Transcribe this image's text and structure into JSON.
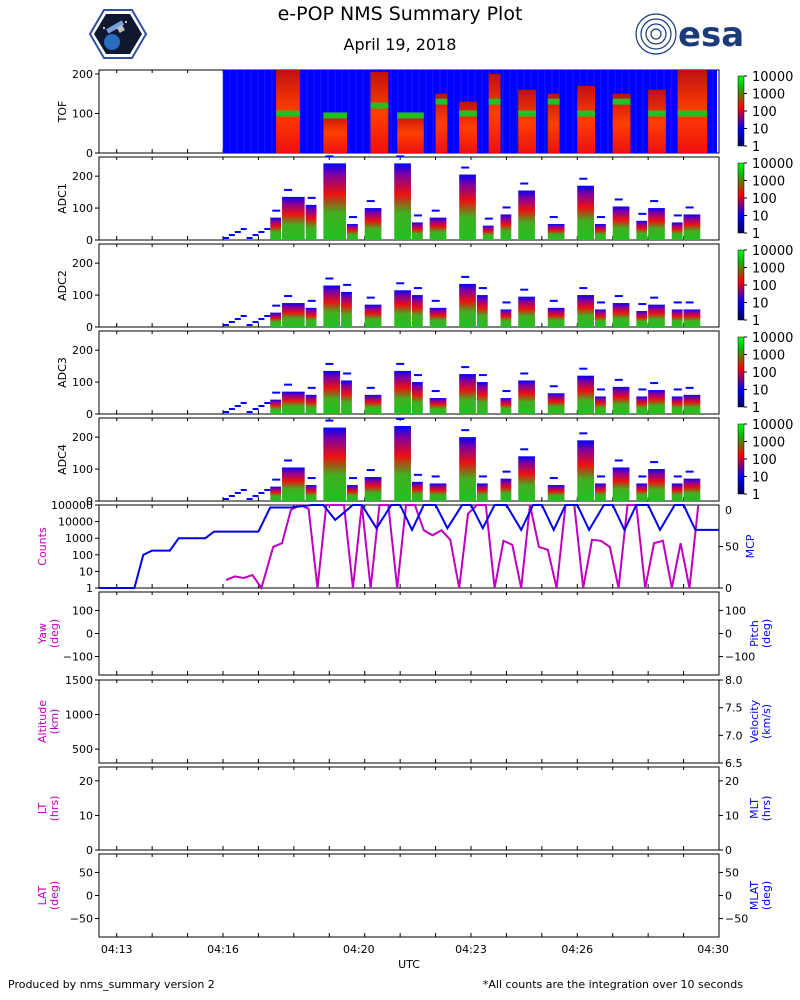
{
  "header": {
    "title": "e-POP NMS Summary Plot",
    "date": "April 19, 2018",
    "right_logo_text": "esa"
  },
  "footer": {
    "left": "Produced by nms_summary version 2",
    "right": "*All counts are the integration over 10 seconds"
  },
  "colors": {
    "magenta": "#c000c0",
    "blue": "#0000ee",
    "spectro_low": "#0000ff",
    "spectro_mid": "#ee1010",
    "spectro_high": "#22c022"
  },
  "chart_data": [
    {
      "type": "heatmap",
      "ylabel": "TOF",
      "ylim": [
        0,
        210
      ],
      "yticks": [
        "0",
        "100",
        "200"
      ],
      "colorbar_ticks": [
        "10000",
        "1000",
        "100",
        "10",
        "1"
      ],
      "colorbar_scale": "log",
      "xlim": [
        "04:12:30",
        "04:30:00"
      ],
      "data_start": "04:16:00",
      "bursts": [
        {
          "start": "04:17:30",
          "end": "04:18:10",
          "top": 210,
          "band": 100
        },
        {
          "start": "04:18:50",
          "end": "04:19:30",
          "top": 100,
          "band": 95
        },
        {
          "start": "04:20:10",
          "end": "04:20:40",
          "top": 205,
          "band": 120
        },
        {
          "start": "04:20:55",
          "end": "04:21:40",
          "top": 100,
          "band": 95
        },
        {
          "start": "04:22:00",
          "end": "04:22:20",
          "top": 150,
          "band": 130
        },
        {
          "start": "04:22:40",
          "end": "04:23:10",
          "top": 130,
          "band": 100
        },
        {
          "start": "04:23:30",
          "end": "04:23:50",
          "top": 200,
          "band": 130
        },
        {
          "start": "04:24:20",
          "end": "04:24:50",
          "top": 160,
          "band": 100
        },
        {
          "start": "04:25:10",
          "end": "04:25:30",
          "top": 150,
          "band": 130
        },
        {
          "start": "04:26:00",
          "end": "04:26:30",
          "top": 170,
          "band": 100
        },
        {
          "start": "04:27:00",
          "end": "04:27:30",
          "top": 150,
          "band": 130
        },
        {
          "start": "04:28:00",
          "end": "04:28:30",
          "top": 160,
          "band": 100
        },
        {
          "start": "04:28:50",
          "end": "04:29:40",
          "top": 210,
          "band": 100
        }
      ]
    },
    {
      "type": "heatmap",
      "ylabel": "ADC1",
      "ylim": [
        0,
        260
      ],
      "yticks": [
        "0",
        "100",
        "200"
      ],
      "colorbar_ticks": [
        "10000",
        "1000",
        "100",
        "10",
        "1"
      ],
      "colorbar_scale": "log",
      "xlim": [
        "04:12:30",
        "04:30:00"
      ],
      "columns": [
        {
          "start": "04:17:20",
          "end": "04:17:40",
          "top": 70
        },
        {
          "start": "04:17:40",
          "end": "04:18:20",
          "top": 135
        },
        {
          "start": "04:18:20",
          "end": "04:18:40",
          "top": 110
        },
        {
          "start": "04:18:50",
          "end": "04:19:30",
          "top": 240
        },
        {
          "start": "04:19:30",
          "end": "04:19:50",
          "top": 50
        },
        {
          "start": "04:20:00",
          "end": "04:20:30",
          "top": 100
        },
        {
          "start": "04:20:50",
          "end": "04:21:20",
          "top": 240
        },
        {
          "start": "04:21:20",
          "end": "04:21:40",
          "top": 55
        },
        {
          "start": "04:21:50",
          "end": "04:22:20",
          "top": 70
        },
        {
          "start": "04:22:40",
          "end": "04:23:10",
          "top": 205
        },
        {
          "start": "04:23:20",
          "end": "04:23:40",
          "top": 45
        },
        {
          "start": "04:23:50",
          "end": "04:24:10",
          "top": 80
        },
        {
          "start": "04:24:20",
          "end": "04:24:50",
          "top": 155
        },
        {
          "start": "04:25:10",
          "end": "04:25:40",
          "top": 50
        },
        {
          "start": "04:26:00",
          "end": "04:26:30",
          "top": 170
        },
        {
          "start": "04:26:30",
          "end": "04:26:50",
          "top": 50
        },
        {
          "start": "04:27:00",
          "end": "04:27:30",
          "top": 105
        },
        {
          "start": "04:27:40",
          "end": "04:28:00",
          "top": 60
        },
        {
          "start": "04:28:00",
          "end": "04:28:30",
          "top": 100
        },
        {
          "start": "04:28:40",
          "end": "04:29:00",
          "top": 55
        },
        {
          "start": "04:29:00",
          "end": "04:29:30",
          "top": 80
        }
      ]
    },
    {
      "type": "heatmap",
      "ylabel": "ADC2",
      "ylim": [
        0,
        260
      ],
      "yticks": [
        "0",
        "100",
        "200"
      ],
      "colorbar_ticks": [
        "10000",
        "1000",
        "100",
        "10",
        "1"
      ],
      "colorbar_scale": "log",
      "xlim": [
        "04:12:30",
        "04:30:00"
      ],
      "columns": [
        {
          "start": "04:17:20",
          "end": "04:17:40",
          "top": 45
        },
        {
          "start": "04:17:40",
          "end": "04:18:20",
          "top": 75
        },
        {
          "start": "04:18:20",
          "end": "04:18:40",
          "top": 60
        },
        {
          "start": "04:18:50",
          "end": "04:19:20",
          "top": 130
        },
        {
          "start": "04:19:20",
          "end": "04:19:40",
          "top": 110
        },
        {
          "start": "04:20:00",
          "end": "04:20:30",
          "top": 70
        },
        {
          "start": "04:20:50",
          "end": "04:21:20",
          "top": 115
        },
        {
          "start": "04:21:20",
          "end": "04:21:40",
          "top": 100
        },
        {
          "start": "04:21:50",
          "end": "04:22:20",
          "top": 60
        },
        {
          "start": "04:22:40",
          "end": "04:23:10",
          "top": 135
        },
        {
          "start": "04:23:10",
          "end": "04:23:30",
          "top": 100
        },
        {
          "start": "04:23:50",
          "end": "04:24:10",
          "top": 55
        },
        {
          "start": "04:24:20",
          "end": "04:24:50",
          "top": 95
        },
        {
          "start": "04:25:10",
          "end": "04:25:40",
          "top": 60
        },
        {
          "start": "04:26:00",
          "end": "04:26:30",
          "top": 100
        },
        {
          "start": "04:26:30",
          "end": "04:26:50",
          "top": 55
        },
        {
          "start": "04:27:00",
          "end": "04:27:30",
          "top": 75
        },
        {
          "start": "04:27:40",
          "end": "04:28:00",
          "top": 50
        },
        {
          "start": "04:28:00",
          "end": "04:28:30",
          "top": 70
        },
        {
          "start": "04:28:40",
          "end": "04:29:00",
          "top": 55
        },
        {
          "start": "04:29:00",
          "end": "04:29:30",
          "top": 55
        }
      ]
    },
    {
      "type": "heatmap",
      "ylabel": "ADC3",
      "ylim": [
        0,
        260
      ],
      "yticks": [
        "0",
        "100",
        "200"
      ],
      "colorbar_ticks": [
        "10000",
        "1000",
        "100",
        "10",
        "1"
      ],
      "colorbar_scale": "log",
      "xlim": [
        "04:12:30",
        "04:30:00"
      ],
      "columns": [
        {
          "start": "04:17:20",
          "end": "04:17:40",
          "top": 45
        },
        {
          "start": "04:17:40",
          "end": "04:18:20",
          "top": 70
        },
        {
          "start": "04:18:20",
          "end": "04:18:40",
          "top": 60
        },
        {
          "start": "04:18:50",
          "end": "04:19:20",
          "top": 135
        },
        {
          "start": "04:19:20",
          "end": "04:19:40",
          "top": 105
        },
        {
          "start": "04:20:00",
          "end": "04:20:30",
          "top": 60
        },
        {
          "start": "04:20:50",
          "end": "04:21:20",
          "top": 135
        },
        {
          "start": "04:21:20",
          "end": "04:21:40",
          "top": 100
        },
        {
          "start": "04:21:50",
          "end": "04:22:20",
          "top": 50
        },
        {
          "start": "04:22:40",
          "end": "04:23:10",
          "top": 125
        },
        {
          "start": "04:23:10",
          "end": "04:23:30",
          "top": 100
        },
        {
          "start": "04:23:50",
          "end": "04:24:10",
          "top": 50
        },
        {
          "start": "04:24:20",
          "end": "04:24:50",
          "top": 105
        },
        {
          "start": "04:25:10",
          "end": "04:25:40",
          "top": 65
        },
        {
          "start": "04:26:00",
          "end": "04:26:30",
          "top": 120
        },
        {
          "start": "04:26:30",
          "end": "04:26:50",
          "top": 55
        },
        {
          "start": "04:27:00",
          "end": "04:27:30",
          "top": 85
        },
        {
          "start": "04:27:40",
          "end": "04:28:00",
          "top": 55
        },
        {
          "start": "04:28:00",
          "end": "04:28:30",
          "top": 75
        },
        {
          "start": "04:28:40",
          "end": "04:29:00",
          "top": 55
        },
        {
          "start": "04:29:00",
          "end": "04:29:30",
          "top": 60
        }
      ]
    },
    {
      "type": "heatmap",
      "ylabel": "ADC4",
      "ylim": [
        0,
        260
      ],
      "yticks": [
        "0",
        "100",
        "200"
      ],
      "colorbar_ticks": [
        "10000",
        "1000",
        "100",
        "10",
        "1"
      ],
      "colorbar_scale": "log",
      "xlim": [
        "04:12:30",
        "04:30:00"
      ],
      "columns": [
        {
          "start": "04:17:20",
          "end": "04:17:40",
          "top": 45
        },
        {
          "start": "04:17:40",
          "end": "04:18:20",
          "top": 105
        },
        {
          "start": "04:18:20",
          "end": "04:18:40",
          "top": 50
        },
        {
          "start": "04:18:50",
          "end": "04:19:30",
          "top": 230
        },
        {
          "start": "04:19:30",
          "end": "04:19:50",
          "top": 50
        },
        {
          "start": "04:20:00",
          "end": "04:20:30",
          "top": 75
        },
        {
          "start": "04:20:50",
          "end": "04:21:20",
          "top": 235
        },
        {
          "start": "04:21:20",
          "end": "04:21:40",
          "top": 60
        },
        {
          "start": "04:21:50",
          "end": "04:22:20",
          "top": 55
        },
        {
          "start": "04:22:40",
          "end": "04:23:10",
          "top": 200
        },
        {
          "start": "04:23:10",
          "end": "04:23:30",
          "top": 55
        },
        {
          "start": "04:23:50",
          "end": "04:24:10",
          "top": 70
        },
        {
          "start": "04:24:20",
          "end": "04:24:50",
          "top": 140
        },
        {
          "start": "04:25:10",
          "end": "04:25:40",
          "top": 50
        },
        {
          "start": "04:26:00",
          "end": "04:26:30",
          "top": 190
        },
        {
          "start": "04:26:30",
          "end": "04:26:50",
          "top": 55
        },
        {
          "start": "04:27:00",
          "end": "04:27:30",
          "top": 105
        },
        {
          "start": "04:27:40",
          "end": "04:28:00",
          "top": 55
        },
        {
          "start": "04:28:00",
          "end": "04:28:30",
          "top": 100
        },
        {
          "start": "04:28:40",
          "end": "04:29:00",
          "top": 55
        },
        {
          "start": "04:29:00",
          "end": "04:29:30",
          "top": 70
        }
      ]
    },
    {
      "type": "line",
      "ylabel_left": "Counts",
      "ylabel_right": "MCP",
      "left_scale": "log",
      "left_ylim": [
        1,
        100000
      ],
      "left_yticks": [
        "1",
        "10",
        "100",
        "1000",
        "10000",
        "100000"
      ],
      "right_ylim": [
        0,
        100
      ],
      "right_yticks": [
        "0",
        "50"
      ],
      "right_top_tick_partial": "0",
      "series": [
        {
          "color": "magenta",
          "axis": "left",
          "x": [
            "04:16:05",
            "04:16:20",
            "04:16:35",
            "04:16:50",
            "04:17:05",
            "04:17:25",
            "04:17:40",
            "04:17:55",
            "04:18:10",
            "04:18:25",
            "04:18:40",
            "04:18:55",
            "04:19:10",
            "04:19:25",
            "04:19:40",
            "04:19:55",
            "04:20:10",
            "04:20:25",
            "04:20:40",
            "04:20:55",
            "04:21:10",
            "04:21:25",
            "04:21:40",
            "04:21:55",
            "04:22:10",
            "04:22:25",
            "04:22:40",
            "04:22:55",
            "04:23:10",
            "04:23:25",
            "04:23:40",
            "04:23:55",
            "04:24:10",
            "04:24:25",
            "04:24:40",
            "04:24:55",
            "04:25:10",
            "04:25:25",
            "04:25:40",
            "04:25:55",
            "04:26:10",
            "04:26:25",
            "04:26:40",
            "04:26:55",
            "04:27:10",
            "04:27:25",
            "04:27:40",
            "04:27:55",
            "04:28:10",
            "04:28:25",
            "04:28:40",
            "04:28:55",
            "04:29:10",
            "04:29:25"
          ],
          "y": [
            3,
            5,
            4,
            6,
            1,
            300,
            500,
            50000,
            100000,
            60000,
            1,
            100000,
            100000,
            100000,
            1,
            100000,
            1,
            100000,
            100000,
            1,
            100000,
            100000,
            3000,
            1500,
            3000,
            800,
            1,
            30000,
            100000,
            100000,
            1,
            700,
            400,
            1,
            100000,
            300,
            200,
            1,
            100000,
            100000,
            1,
            800,
            700,
            300,
            1,
            100000,
            100000,
            1,
            500,
            700,
            1,
            500,
            1,
            100000
          ]
        },
        {
          "color": "blue",
          "axis": "right",
          "x": [
            "04:12:30",
            "04:13:30",
            "04:13:45",
            "04:14:00",
            "04:14:30",
            "04:14:45",
            "04:15:30",
            "04:15:45",
            "04:16:00",
            "04:17:00",
            "04:17:20",
            "04:17:55",
            "04:18:30",
            "04:18:50",
            "04:19:10",
            "04:19:40",
            "04:19:55",
            "04:20:20",
            "04:20:45",
            "04:21:00",
            "04:21:20",
            "04:21:40",
            "04:22:00",
            "04:22:20",
            "04:22:45",
            "04:23:00",
            "04:23:20",
            "04:23:40",
            "04:24:00",
            "04:24:25",
            "04:24:45",
            "04:25:00",
            "04:25:20",
            "04:25:40",
            "04:26:00",
            "04:26:20",
            "04:26:45",
            "04:27:00",
            "04:27:20",
            "04:27:40",
            "04:28:00",
            "04:28:20",
            "04:28:45",
            "04:29:00",
            "04:29:20",
            "04:29:40",
            "04:30:00"
          ],
          "y": [
            0,
            0,
            40,
            45,
            45,
            60,
            60,
            68,
            68,
            68,
            97,
            97,
            100,
            100,
            82,
            100,
            100,
            72,
            100,
            100,
            70,
            100,
            100,
            72,
            100,
            100,
            72,
            100,
            100,
            70,
            100,
            100,
            70,
            100,
            100,
            70,
            100,
            100,
            70,
            100,
            100,
            70,
            100,
            100,
            70,
            70,
            70
          ]
        }
      ]
    },
    {
      "type": "line",
      "ylabel_left": "Yaw\n(deg)",
      "ylabel_right": "Pitch\n(deg)",
      "left_ylim": [
        -180,
        180
      ],
      "left_yticks": [
        "−100",
        "0",
        "100"
      ],
      "right_ylim": [
        -180,
        180
      ],
      "right_yticks": [
        "−100",
        "0",
        "100"
      ],
      "series": []
    },
    {
      "type": "line",
      "ylabel_left": "Altitude\n(km)",
      "ylabel_right": "Velocity\n(km/s)",
      "left_ylim": [
        300,
        1500
      ],
      "left_yticks": [
        "500",
        "1000",
        "1500"
      ],
      "right_ylim": [
        6.5,
        8.0
      ],
      "right_yticks": [
        "6.5",
        "7.0",
        "7.5",
        "8.0"
      ],
      "series": []
    },
    {
      "type": "line",
      "ylabel_left": "LT\n(hrs)",
      "ylabel_right": "MLT\n(hrs)",
      "left_ylim": [
        0,
        24
      ],
      "left_yticks": [
        "0",
        "10",
        "20"
      ],
      "right_ylim": [
        0,
        24
      ],
      "right_yticks": [
        "0",
        "10",
        "20"
      ],
      "series": []
    },
    {
      "type": "line",
      "ylabel_left": "LAT\n(deg)",
      "ylabel_right": "MLAT\n(deg)",
      "left_ylim": [
        -90,
        90
      ],
      "left_yticks": [
        "−50",
        "0",
        "50"
      ],
      "right_ylim": [
        -90,
        90
      ],
      "right_yticks": [
        "−50",
        "0",
        "50"
      ],
      "xlabel": "UTC",
      "xticks": [
        "04:13",
        "04:16",
        "04:20",
        "04:23",
        "04:26",
        "04:30"
      ],
      "series": []
    }
  ]
}
